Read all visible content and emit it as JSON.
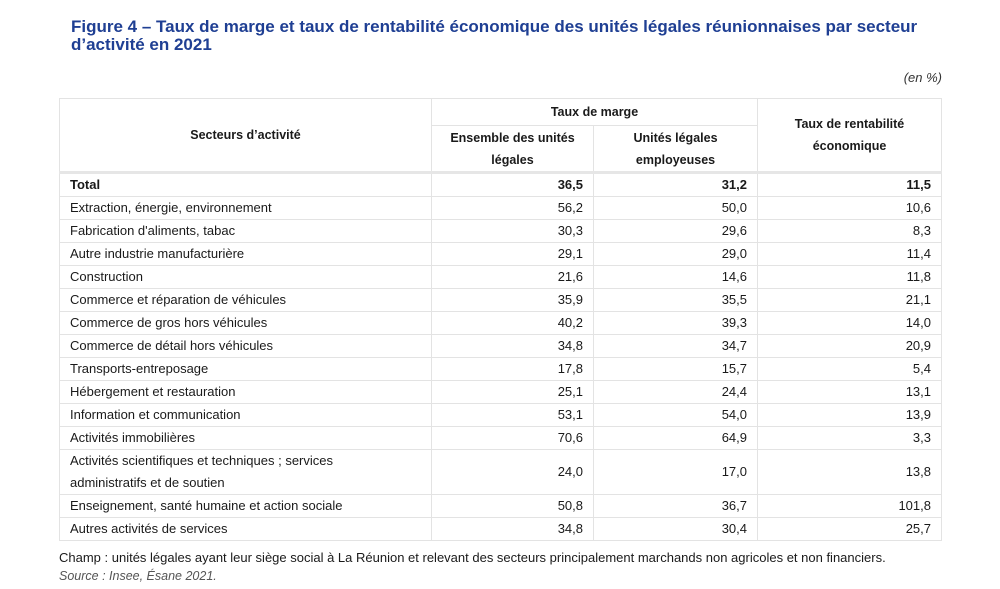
{
  "title": "Figure 4 – Taux de marge et taux de rentabilité économique des unités légales réunionnaises par secteur d’activité en 2021",
  "unit": "(en %)",
  "table": {
    "header_sector": "Secteurs d’activité",
    "header_group": "Taux de marge",
    "header_col1": "Ensemble des unités légales",
    "header_col2": "Unités légales employeuses",
    "header_col3": "Taux de rentabilité économique",
    "rows": [
      {
        "label": "Total",
        "c1": "36,5",
        "c2": "31,2",
        "c3": "11,5"
      },
      {
        "label": "Extraction, énergie, environnement",
        "c1": "56,2",
        "c2": "50,0",
        "c3": "10,6"
      },
      {
        "label": "Fabrication d'aliments, tabac",
        "c1": "30,3",
        "c2": "29,6",
        "c3": "8,3"
      },
      {
        "label": "Autre industrie manufacturière",
        "c1": "29,1",
        "c2": "29,0",
        "c3": "11,4"
      },
      {
        "label": "Construction",
        "c1": "21,6",
        "c2": "14,6",
        "c3": "11,8"
      },
      {
        "label": "Commerce et réparation de véhicules",
        "c1": "35,9",
        "c2": "35,5",
        "c3": "21,1"
      },
      {
        "label": "Commerce de gros hors véhicules",
        "c1": "40,2",
        "c2": "39,3",
        "c3": "14,0"
      },
      {
        "label": "Commerce de détail hors véhicules",
        "c1": "34,8",
        "c2": "34,7",
        "c3": "20,9"
      },
      {
        "label": "Transports-entreposage",
        "c1": "17,8",
        "c2": "15,7",
        "c3": "5,4"
      },
      {
        "label": "Hébergement et restauration",
        "c1": "25,1",
        "c2": "24,4",
        "c3": "13,1"
      },
      {
        "label": "Information et communication",
        "c1": "53,1",
        "c2": "54,0",
        "c3": "13,9"
      },
      {
        "label": "Activités immobilières",
        "c1": "70,6",
        "c2": "64,9",
        "c3": "3,3"
      },
      {
        "label": "Activités scientifiques et techniques ; services administratifs et de soutien",
        "c1": "24,0",
        "c2": "17,0",
        "c3": "13,8"
      },
      {
        "label": "Enseignement, santé humaine et action sociale",
        "c1": "50,8",
        "c2": "36,7",
        "c3": "101,8"
      },
      {
        "label": "Autres activités de services",
        "c1": "34,8",
        "c2": "30,4",
        "c3": "25,7"
      }
    ]
  },
  "footnote": {
    "champ": "Champ : unités légales ayant leur siège social à La Réunion et relevant des secteurs principalement marchands non agricoles et non financiers.",
    "source": "Source : Insee, Ésane 2021."
  }
}
